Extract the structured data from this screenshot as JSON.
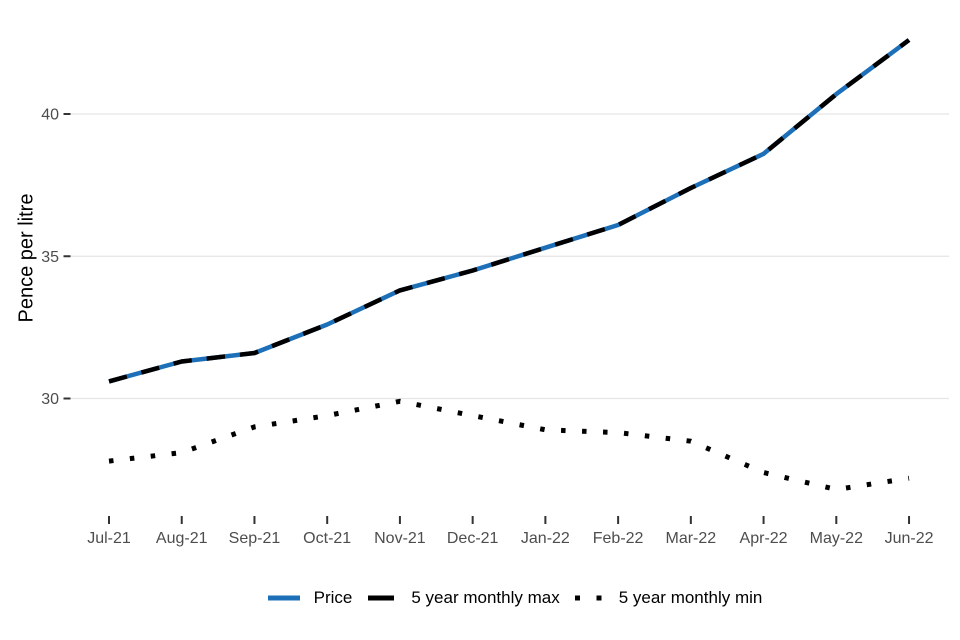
{
  "chart_data": {
    "type": "line",
    "title": "",
    "xlabel": "",
    "ylabel": "Pence per litre",
    "categories": [
      "Jul-21",
      "Aug-21",
      "Sep-21",
      "Oct-21",
      "Nov-21",
      "Dec-21",
      "Jan-22",
      "Feb-22",
      "Mar-22",
      "Apr-22",
      "May-22",
      "Jun-22"
    ],
    "yticks": [
      30,
      35,
      40
    ],
    "ylim": [
      26.3,
      43.2
    ],
    "grid": "horizontal-only",
    "legend_position": "bottom",
    "series": [
      {
        "name": "Price",
        "color": "#1d70b8",
        "line_style": "solid",
        "values": [
          30.6,
          31.3,
          31.6,
          32.6,
          33.8,
          34.5,
          35.3,
          36.1,
          37.4,
          38.6,
          40.7,
          42.6
        ]
      },
      {
        "name": "5 year monthly max",
        "color": "#000000",
        "line_style": "dashed",
        "values": [
          30.6,
          31.3,
          31.6,
          32.6,
          33.8,
          34.5,
          35.3,
          36.1,
          37.4,
          38.6,
          40.7,
          42.6
        ]
      },
      {
        "name": "5 year monthly min",
        "color": "#000000",
        "line_style": "dotted",
        "values": [
          27.8,
          28.1,
          29.0,
          29.4,
          29.9,
          29.4,
          28.9,
          28.8,
          28.5,
          27.4,
          26.8,
          27.2
        ]
      }
    ]
  },
  "colors": {
    "background": "#ffffff",
    "gridline": "#e5e5e5",
    "tick_mark": "#333333",
    "axis_text": "#4d4d4d",
    "price_blue": "#1d70b8",
    "series_black": "#000000"
  }
}
